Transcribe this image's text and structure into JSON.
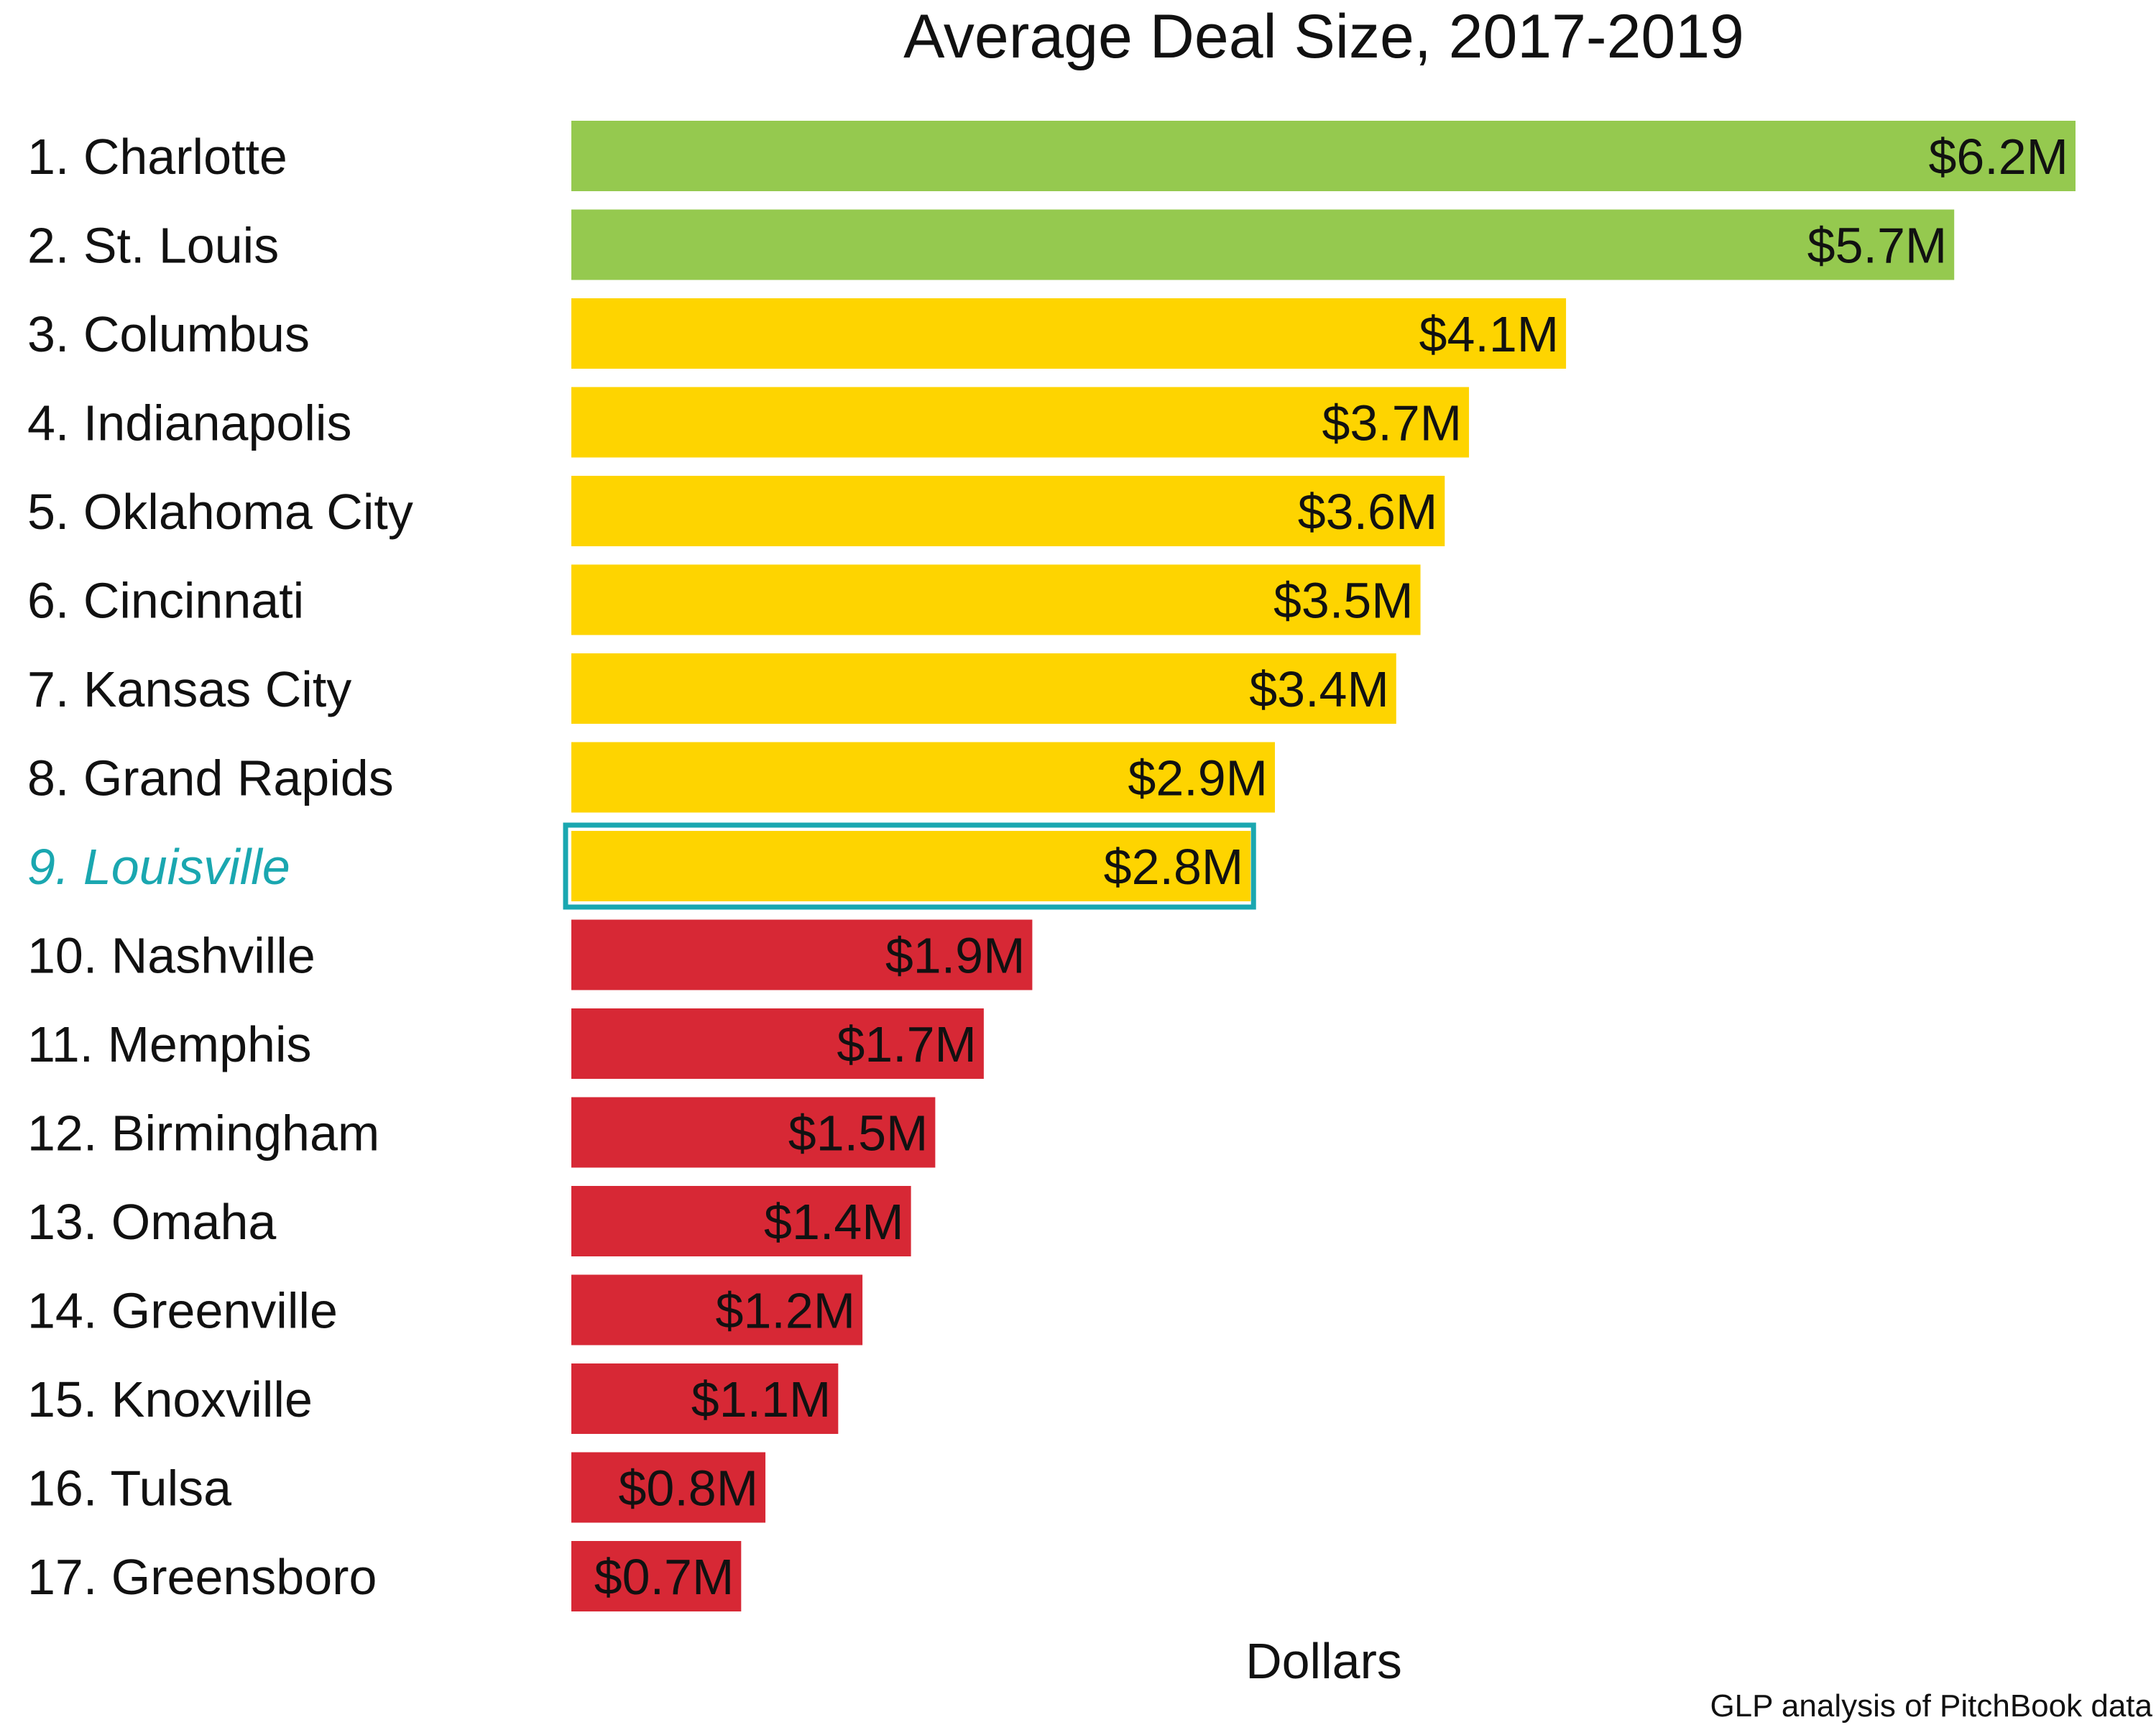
{
  "chart_data": {
    "type": "bar",
    "orientation": "horizontal",
    "title": "Average Deal Size, 2017-2019",
    "xlabel": "Dollars",
    "ylabel": "",
    "source": "GLP analysis of PitchBook data",
    "categories": [
      "1. Charlotte",
      "2. St. Louis",
      "3. Columbus",
      "4. Indianapolis",
      "5. Oklahoma City",
      "6. Cincinnati",
      "7. Kansas City",
      "8. Grand Rapids",
      "9. Louisville",
      "10. Nashville",
      "11. Memphis",
      "12. Birmingham",
      "13. Omaha",
      "14. Greenville",
      "15. Knoxville",
      "16. Tulsa",
      "17. Greensboro"
    ],
    "values": [
      6.2,
      5.7,
      4.1,
      3.7,
      3.6,
      3.5,
      3.4,
      2.9,
      2.8,
      1.9,
      1.7,
      1.5,
      1.4,
      1.2,
      1.1,
      0.8,
      0.7
    ],
    "value_labels": [
      "$6.2M",
      "$5.7M",
      "$4.1M",
      "$3.7M",
      "$3.6M",
      "$3.5M",
      "$3.4M",
      "$2.9M",
      "$2.8M",
      "$1.9M",
      "$1.7M",
      "$1.5M",
      "$1.4M",
      "$1.2M",
      "$1.1M",
      "$0.8M",
      "$0.7M"
    ],
    "tiers": [
      "green",
      "green",
      "yellow",
      "yellow",
      "yellow",
      "yellow",
      "yellow",
      "yellow",
      "yellow",
      "red",
      "red",
      "red",
      "red",
      "red",
      "red",
      "red",
      "red"
    ],
    "tier_colors": {
      "green": "#95c94f",
      "yellow": "#fed400",
      "red": "#d72835"
    },
    "highlight_category": "9. Louisville",
    "highlight_color": "#1aa7b0",
    "xlim": [
      0,
      6.2
    ],
    "grid": false,
    "legend": "none"
  }
}
